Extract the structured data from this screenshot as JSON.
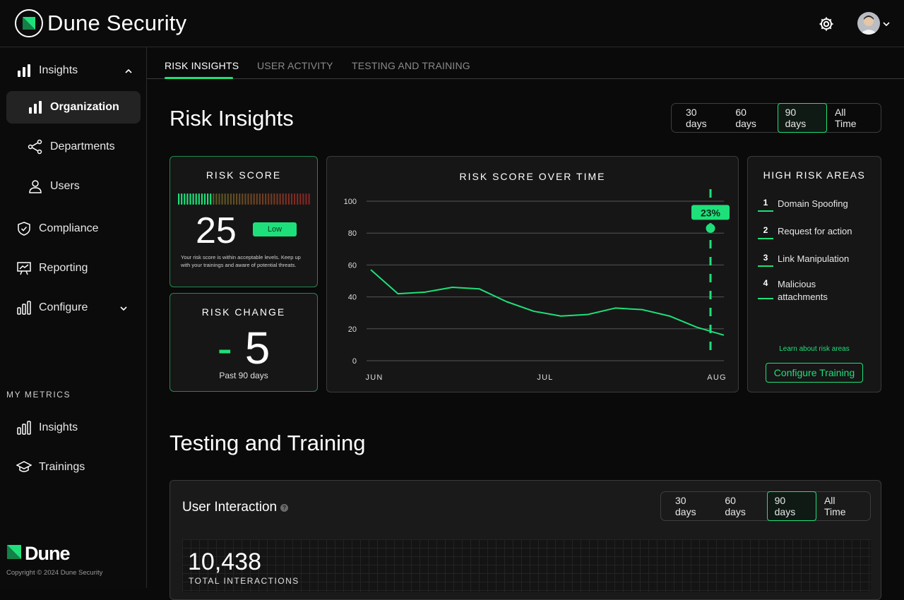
{
  "app": {
    "title": "Dune Security",
    "footer_brand": "Dune",
    "copyright": "Copyright © 2024 Dune Security"
  },
  "icons": {
    "logo": "dune-logo-icon",
    "settings": "gear-icon",
    "avatar": "user-avatar",
    "caret": "chevron-down-icon"
  },
  "sidebar": {
    "insights": "Insights",
    "organization": "Organization",
    "departments": "Departments",
    "users": "Users",
    "compliance": "Compliance",
    "reporting": "Reporting",
    "configure": "Configure",
    "section_label": "MY METRICS",
    "my_insights": "Insights",
    "trainings": "Trainings"
  },
  "tabs": [
    "RISK INSIGHTS",
    "USER ACTIVITY",
    "TESTING AND TRAINING"
  ],
  "risk_insights": {
    "heading": "Risk Insights",
    "ranges": [
      "30 days",
      "60 days",
      "90 days",
      "All Time"
    ],
    "selected_range": "90 days"
  },
  "risk_score": {
    "title": "RISK SCORE",
    "value": "25",
    "level": "Low",
    "gauge_fraction": 0.25,
    "description": "Your risk score is within acceptable levels. Keep up with your trainings and aware of potential threats."
  },
  "risk_change": {
    "title": "RISK CHANGE",
    "sign": "-",
    "value": "5",
    "period": "Past 90 days"
  },
  "chart_data": {
    "type": "line",
    "title": "RISK SCORE OVER TIME",
    "y_ticks": [
      "100",
      "80",
      "60",
      "40",
      "20",
      "0"
    ],
    "x_ticks": [
      "JUN",
      "JUL",
      "AUG"
    ],
    "ylim": [
      0,
      100
    ],
    "series": [
      {
        "values": [
          57,
          42,
          43,
          46,
          45,
          37,
          31,
          28,
          29,
          33,
          32,
          28,
          21,
          16
        ]
      }
    ],
    "annotation": {
      "label": "23%",
      "value": 83
    },
    "grid": true,
    "line_color": "#1ee07a"
  },
  "high_risk": {
    "title": "HIGH RISK AREAS",
    "items": [
      {
        "n": "1",
        "label": "Domain Spoofing"
      },
      {
        "n": "2",
        "label": "Request for action"
      },
      {
        "n": "3",
        "label": "Link Manipulation"
      },
      {
        "n": "4",
        "label": "Malicious attachments"
      }
    ],
    "learn_link": "Learn about risk areas",
    "configure_button": "Configure Training"
  },
  "testing": {
    "heading": "Testing and Training",
    "card_title": "User Interaction",
    "help": "?",
    "ranges": [
      "30 days",
      "60 days",
      "90 days",
      "All Time"
    ],
    "selected_range": "90 days",
    "total_value": "10,438",
    "total_label": "TOTAL INTERACTIONS"
  }
}
